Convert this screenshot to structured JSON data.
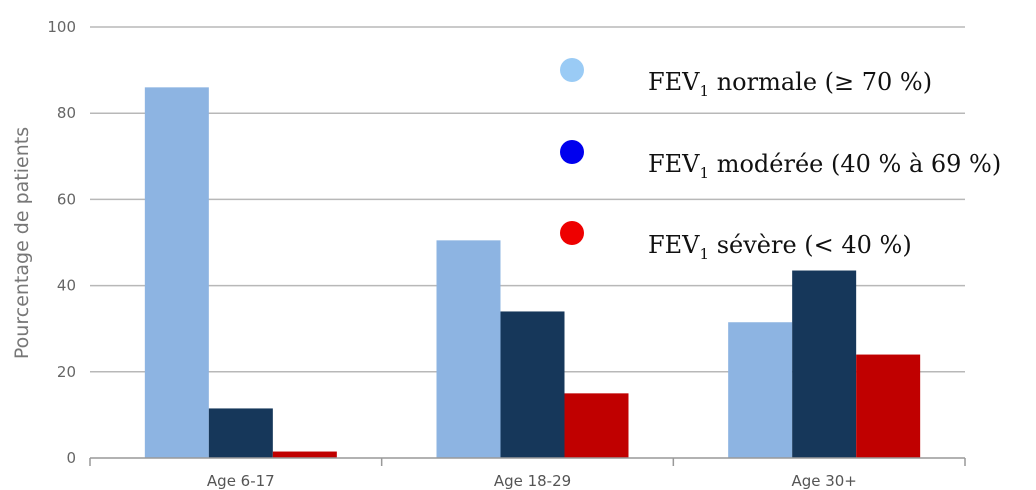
{
  "chart_data": {
    "type": "bar",
    "title": "",
    "xlabel": "",
    "ylabel": "Pourcentage de patients",
    "ylim": [
      0,
      100
    ],
    "yticks": [
      0,
      20,
      40,
      60,
      80,
      100
    ],
    "grid": "horizontal",
    "legend_position": "top-right",
    "categories": [
      "Age 6-17",
      "Age 18-29",
      "Age 30+"
    ],
    "series": [
      {
        "name_prefix": "FEV",
        "name_sub": "1",
        "name_suffix": " normale (≥ 70 %)",
        "color": "#8DB4E2",
        "marker_color": "#9ACBF5",
        "values": [
          86,
          50.5,
          31.5
        ]
      },
      {
        "name_prefix": "FEV",
        "name_sub": "1",
        "name_suffix": " modérée (40 % à 69 %)",
        "color": "#16375A",
        "marker_color": "#0000EE",
        "values": [
          11.5,
          34,
          43.5
        ]
      },
      {
        "name_prefix": "FEV",
        "name_sub": "1",
        "name_suffix": " sévère (< 40 %)",
        "color": "#C00000",
        "marker_color": "#EE0000",
        "values": [
          1.5,
          15,
          24
        ]
      }
    ]
  }
}
